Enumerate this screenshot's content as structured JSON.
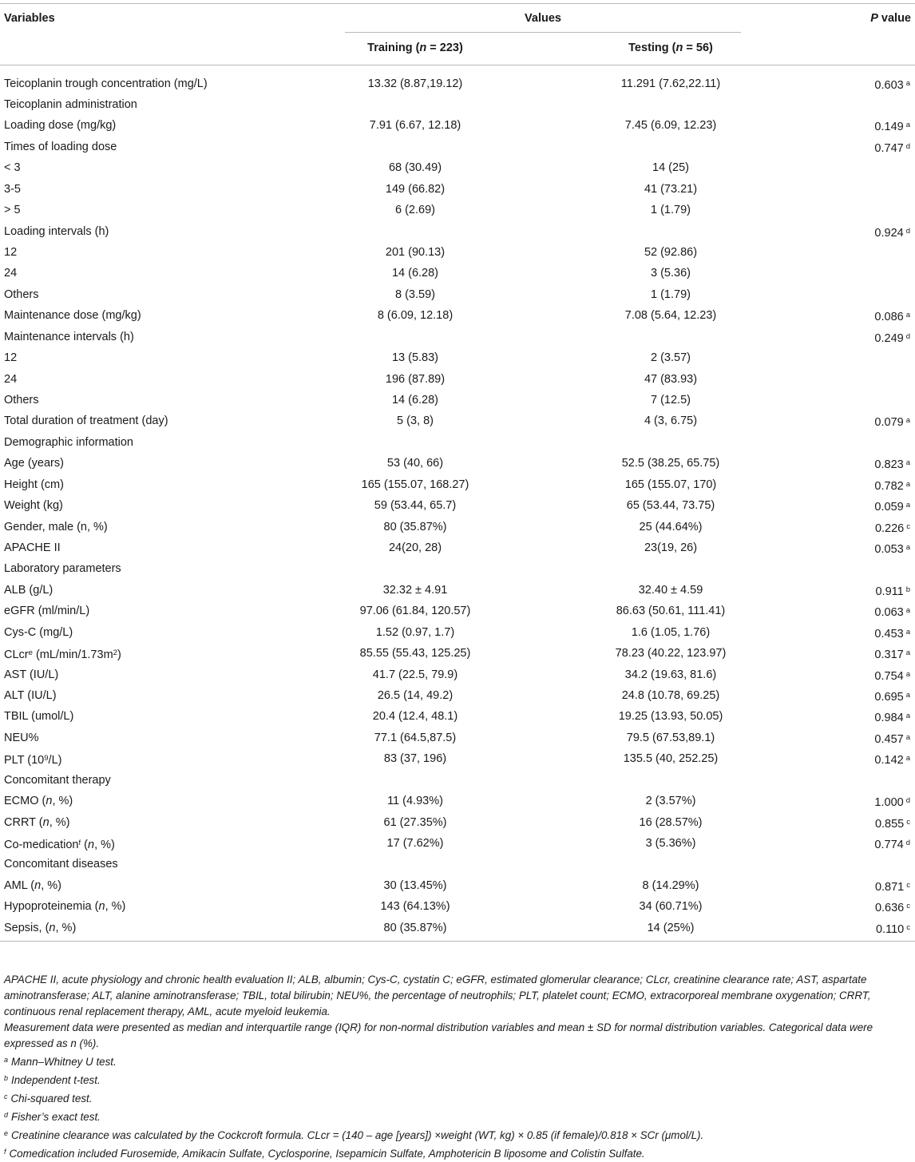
{
  "header": {
    "variables": "Variables",
    "values": "Values",
    "p_value_p": "P",
    "p_value_rest": " value",
    "training": {
      "pre": "Training (",
      "n": "n",
      "post": " = 223)"
    },
    "testing": {
      "pre": "Testing (",
      "n": "n",
      "post": " = 56)"
    }
  },
  "rows": [
    {
      "variable": "Teicoplanin trough concentration (mg/L)",
      "training": "13.32 (8.87,19.12)",
      "testing": "11.291 (7.62,22.11)",
      "p": "0.603",
      "sup": "a"
    },
    {
      "variable": "Teicoplanin administration",
      "training": "",
      "testing": "",
      "p": "",
      "sup": ""
    },
    {
      "variable": "Loading dose (mg/kg)",
      "training": "7.91 (6.67, 12.18)",
      "testing": "7.45 (6.09, 12.23)",
      "p": "0.149",
      "sup": "a"
    },
    {
      "variable": "Times of loading dose",
      "training": "",
      "testing": "",
      "p": "0.747",
      "sup": "d"
    },
    {
      "variable": "< 3",
      "training": "68 (30.49)",
      "testing": "14 (25)",
      "p": "",
      "sup": ""
    },
    {
      "variable": "3-5",
      "training": "149 (66.82)",
      "testing": "41 (73.21)",
      "p": "",
      "sup": ""
    },
    {
      "variable": "> 5",
      "training": "6 (2.69)",
      "testing": "1 (1.79)",
      "p": "",
      "sup": ""
    },
    {
      "variable": "Loading intervals (h)",
      "training": "",
      "testing": "",
      "p": "0.924",
      "sup": "d"
    },
    {
      "variable": "12",
      "training": "201 (90.13)",
      "testing": "52 (92.86)",
      "p": "",
      "sup": ""
    },
    {
      "variable": "24",
      "training": "14 (6.28)",
      "testing": "3 (5.36)",
      "p": "",
      "sup": ""
    },
    {
      "variable": "Others",
      "training": "8 (3.59)",
      "testing": "1 (1.79)",
      "p": "",
      "sup": ""
    },
    {
      "variable": "Maintenance dose (mg/kg)",
      "training": "8 (6.09, 12.18)",
      "testing": "7.08 (5.64, 12.23)",
      "p": "0.086",
      "sup": "a"
    },
    {
      "variable": "Maintenance intervals (h)",
      "training": "",
      "testing": "",
      "p": "0.249",
      "sup": "d"
    },
    {
      "variable": "12",
      "training": "13 (5.83)",
      "testing": "2 (3.57)",
      "p": "",
      "sup": ""
    },
    {
      "variable": "24",
      "training": "196 (87.89)",
      "testing": "47 (83.93)",
      "p": "",
      "sup": ""
    },
    {
      "variable": "Others",
      "training": "14 (6.28)",
      "testing": "7 (12.5)",
      "p": "",
      "sup": ""
    },
    {
      "variable": "Total duration of treatment (day)",
      "training": "5 (3, 8)",
      "testing": "4 (3, 6.75)",
      "p": "0.079",
      "sup": "a"
    },
    {
      "variable": "Demographic information",
      "training": "",
      "testing": "",
      "p": "",
      "sup": ""
    },
    {
      "variable": "Age (years)",
      "training": "53 (40, 66)",
      "testing": "52.5 (38.25, 65.75)",
      "p": "0.823",
      "sup": "a"
    },
    {
      "variable": "Height (cm)",
      "training": "165 (155.07, 168.27)",
      "testing": "165 (155.07, 170)",
      "p": "0.782",
      "sup": "a"
    },
    {
      "variable": "Weight (kg)",
      "training": "59 (53.44, 65.7)",
      "testing": "65 (53.44, 73.75)",
      "p": "0.059",
      "sup": "a"
    },
    {
      "variable": "Gender, male (n, %)",
      "training": "80 (35.87%)",
      "testing": "25 (44.64%)",
      "p": "0.226",
      "sup": "c"
    },
    {
      "variable": "APACHE II",
      "training": "24(20, 28)",
      "testing": "23(19, 26)",
      "p": "0.053",
      "sup": "a"
    },
    {
      "variable": "Laboratory parameters",
      "training": "",
      "testing": "",
      "p": "",
      "sup": ""
    },
    {
      "variable": "ALB (g/L)",
      "training": "32.32 ± 4.91",
      "testing": "32.40 ± 4.59",
      "p": "0.911",
      "sup": "b"
    },
    {
      "variable": "eGFR (ml/min/L)",
      "training": "97.06 (61.84, 120.57)",
      "testing": "86.63 (50.61, 111.41)",
      "p": "0.063",
      "sup": "a"
    },
    {
      "variable": "Cys-C (mg/L)",
      "training": "1.52 (0.97, 1.7)",
      "testing": "1.6 (1.05, 1.76)",
      "p": "0.453",
      "sup": "a"
    },
    {
      "variable": "CLcr",
      "var_sup": "e",
      "var_rest": " (mL/min/1.73m",
      "var_sup2": "2",
      "var_end": ")",
      "training": "85.55 (55.43, 125.25)",
      "testing": "78.23 (40.22, 123.97)",
      "p": "0.317",
      "sup": "a"
    },
    {
      "variable": "AST (IU/L)",
      "training": "41.7 (22.5, 79.9)",
      "testing": "34.2 (19.63, 81.6)",
      "p": "0.754",
      "sup": "a"
    },
    {
      "variable": "ALT (IU/L)",
      "training": "26.5 (14, 49.2)",
      "testing": "24.8 (10.78, 69.25)",
      "p": "0.695",
      "sup": "a"
    },
    {
      "variable": "TBIL (umol/L)",
      "training": "20.4 (12.4, 48.1)",
      "testing": "19.25 (13.93, 50.05)",
      "p": "0.984",
      "sup": "a"
    },
    {
      "variable": "NEU%",
      "training": "77.1 (64.5,87.5)",
      "testing": "79.5 (67.53,89.1)",
      "p": "0.457",
      "sup": "a"
    },
    {
      "variable": "PLT (10",
      "var_sup": "9",
      "var_rest": "/L)",
      "training": "83 (37, 196)",
      "testing": "135.5 (40, 252.25)",
      "p": "0.142",
      "sup": "a"
    },
    {
      "variable": "Concomitant therapy",
      "training": "",
      "testing": "",
      "p": "",
      "sup": ""
    },
    {
      "variable": "ECMO (",
      "var_ital": "n",
      "var_rest": ", %)",
      "training": "11 (4.93%)",
      "testing": "2 (3.57%)",
      "p": "1.000",
      "sup": "d"
    },
    {
      "variable": "CRRT (",
      "var_ital": "n",
      "var_rest": ", %)",
      "training": "61 (27.35%)",
      "testing": "16 (28.57%)",
      "p": "0.855",
      "sup": "c"
    },
    {
      "variable": "Co-medication",
      "var_sup": "f",
      "var_rest": " (",
      "var_ital": "n",
      "var_rest2": ", %)",
      "training": "17 (7.62%)",
      "testing": "3 (5.36%)",
      "p": "0.774",
      "sup": "d"
    },
    {
      "variable": "Concomitant diseases",
      "training": "",
      "testing": "",
      "p": "",
      "sup": ""
    },
    {
      "variable": "AML (",
      "var_ital": "n",
      "var_rest": ", %)",
      "training": "30 (13.45%)",
      "testing": "8 (14.29%)",
      "p": "0.871",
      "sup": "c"
    },
    {
      "variable": "Hypoproteinemia (",
      "var_ital": "n",
      "var_rest": ", %)",
      "training": "143 (64.13%)",
      "testing": "34 (60.71%)",
      "p": "0.636",
      "sup": "c"
    },
    {
      "variable": "Sepsis, (",
      "var_ital": "n",
      "var_rest": ", %)",
      "training": "80 (35.87%)",
      "testing": "14 (25%)",
      "p": "0.110",
      "sup": "c"
    }
  ],
  "notes": {
    "abbreviations": "APACHE II, acute physiology and chronic health evaluation II; ALB, albumin; Cys-C, cystatin C; eGFR, estimated glomerular clearance; CLcr, creatinine clearance rate; AST, aspartate aminotransferase; ALT, alanine aminotransferase; TBIL, total bilirubin; NEU%, the percentage of neutrophils; PLT, platelet count; ECMO, extracorporeal membrane oxygenation; CRRT, continuous renal replacement therapy, AML, acute myeloid leukemia.",
    "measurement": "Measurement data were presented as median and interquartile range (IQR) for non-normal distribution variables and mean ± SD for normal distribution variables. Categorical data were expressed as n (%).",
    "footnotes": [
      {
        "mark": "a",
        "text": "Mann–Whitney U test."
      },
      {
        "mark": "b",
        "text": "Independent t-test."
      },
      {
        "mark": "c",
        "text": "Chi-squared test."
      },
      {
        "mark": "d",
        "text": "Fisher’s exact test."
      },
      {
        "mark": "e",
        "text": "Creatinine clearance was calculated by the Cockcroft formula. CLcr = (140 – age [years]) ×weight (WT, kg) × 0.85 (if female)/0.818 × SCr (μmol/L)."
      },
      {
        "mark": "f",
        "text": "Comedication included Furosemide, Amikacin Sulfate, Cyclosporine, Isepamicin Sulfate, Amphotericin B liposome and Colistin Sulfate."
      }
    ]
  }
}
